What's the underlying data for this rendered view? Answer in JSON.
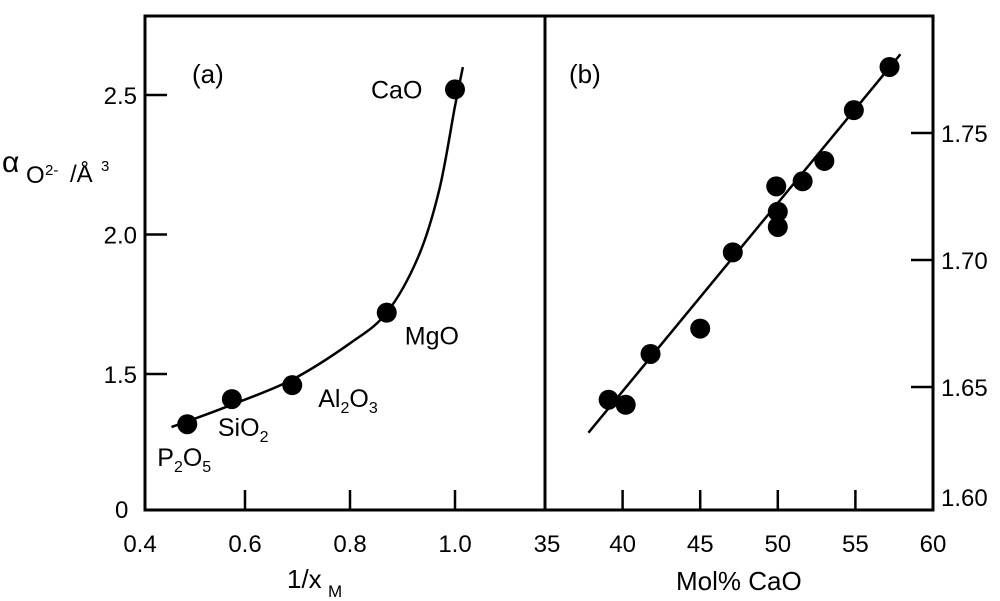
{
  "chart_data": [
    {
      "panel": "(a)",
      "type": "scatter",
      "title": "",
      "xlabel": "1/x",
      "xlabel_subscript": "M",
      "ylabel_symbol": "α",
      "ylabel_sub": "O",
      "ylabel_sup": "2-",
      "ylabel_unit": "/Å",
      "ylabel_unit_sup": "3",
      "xlim": [
        0.4,
        1.05
      ],
      "ylim_break": true,
      "ylim": [
        1.2,
        2.75
      ],
      "x_ticks": [
        0.4,
        0.6,
        0.8,
        1.0
      ],
      "x_tick_labels": [
        "0.4",
        "0.6",
        "0.8",
        "1.0"
      ],
      "y_ticks": [
        1.5,
        2.0,
        2.5
      ],
      "y_tick_labels": [
        "1.5",
        "2.0",
        "2.5"
      ],
      "y_origin_label": "0",
      "grid": false,
      "points": [
        {
          "label": "P2O5",
          "label_main": [
            "P",
            "O"
          ],
          "label_subs": [
            "2",
            "5"
          ],
          "x": 0.49,
          "y": 1.32
        },
        {
          "label": "SiO2",
          "label_main": [
            "SiO"
          ],
          "label_subs": [
            "2"
          ],
          "x": 0.575,
          "y": 1.41
        },
        {
          "label": "Al2O3",
          "label_main": [
            "Al",
            "O"
          ],
          "label_subs": [
            "2",
            "3"
          ],
          "x": 0.69,
          "y": 1.46
        },
        {
          "label": "MgO",
          "label_main": [
            "MgO"
          ],
          "label_subs": [],
          "x": 0.87,
          "y": 1.72
        },
        {
          "label": "CaO",
          "label_main": [
            "CaO"
          ],
          "label_subs": [],
          "x": 1.0,
          "y": 2.52
        }
      ],
      "fit_curve": {
        "kind": "smooth",
        "x": [
          0.46,
          0.49,
          0.575,
          0.69,
          0.8,
          0.87,
          0.93,
          0.97,
          1.0,
          1.015
        ],
        "y": [
          1.31,
          1.33,
          1.39,
          1.48,
          1.61,
          1.72,
          1.92,
          2.16,
          2.46,
          2.6
        ]
      }
    },
    {
      "panel": "(b)",
      "type": "scatter",
      "title": "",
      "xlabel": "Mol% CaO",
      "ylabel": "",
      "y_axis_side": "right",
      "xlim": [
        35,
        60
      ],
      "ylim": [
        1.6,
        1.785
      ],
      "x_ticks": [
        35,
        40,
        45,
        50,
        55,
        60
      ],
      "x_tick_labels": [
        "35",
        "40",
        "45",
        "50",
        "55",
        "60"
      ],
      "y_ticks": [
        1.6,
        1.65,
        1.7,
        1.75
      ],
      "y_tick_labels": [
        "1.60",
        "1.65",
        "1.70",
        "1.75"
      ],
      "grid": false,
      "points": [
        {
          "x": 39.1,
          "y": 1.645
        },
        {
          "x": 40.2,
          "y": 1.643
        },
        {
          "x": 41.8,
          "y": 1.663
        },
        {
          "x": 45.0,
          "y": 1.673
        },
        {
          "x": 47.1,
          "y": 1.703
        },
        {
          "x": 49.9,
          "y": 1.729
        },
        {
          "x": 50.0,
          "y": 1.719
        },
        {
          "x": 50.0,
          "y": 1.713
        },
        {
          "x": 51.6,
          "y": 1.731
        },
        {
          "x": 53.0,
          "y": 1.739
        },
        {
          "x": 54.9,
          "y": 1.759
        },
        {
          "x": 57.2,
          "y": 1.776
        }
      ],
      "fit_line": {
        "x": [
          37.8,
          57.9
        ],
        "y": [
          1.632,
          1.781
        ]
      }
    }
  ]
}
